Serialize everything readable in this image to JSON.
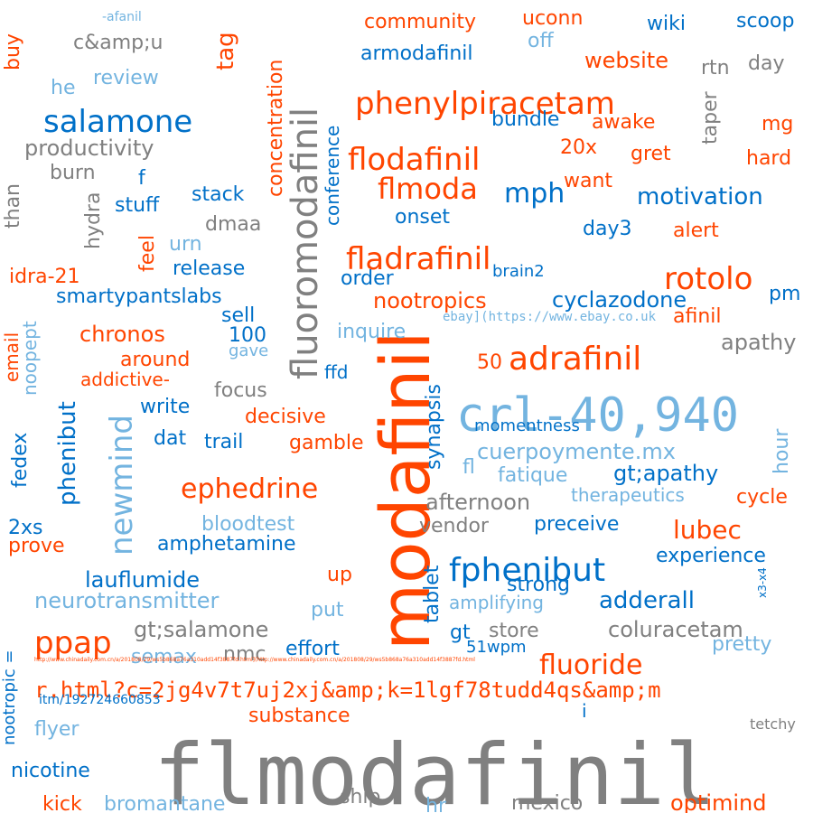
{
  "colors": {
    "gray": "#808080",
    "orange": "#ff4500",
    "blue": "#0070c8",
    "lightblue": "#73b4e0"
  },
  "words": [
    {
      "text": "flmodafinil",
      "color": "gray"
    },
    {
      "text": "modafinil",
      "color": "orange"
    },
    {
      "text": "crl-40,940",
      "color": "lightblue"
    },
    {
      "text": "fluoromodafinil",
      "color": "gray"
    },
    {
      "text": "adrafinil",
      "color": "orange"
    },
    {
      "text": "newmind",
      "color": "lightblue"
    },
    {
      "text": "phenylpiracetam",
      "color": "orange"
    },
    {
      "text": "fphenibut",
      "color": "blue"
    },
    {
      "text": "flodafinil",
      "color": "orange"
    },
    {
      "text": "fladrafinil",
      "color": "orange"
    },
    {
      "text": "salamone",
      "color": "blue"
    },
    {
      "text": "flmoda",
      "color": "orange"
    },
    {
      "text": "rotolo",
      "color": "orange"
    },
    {
      "text": "ppap",
      "color": "orange"
    },
    {
      "text": "ephedrine",
      "color": "orange"
    },
    {
      "text": "fluoride",
      "color": "orange"
    },
    {
      "text": "r.html?c=2jg4v7t7uj2xj&amp;k=1lgf78tudd4qs&amp;m",
      "color": "orange"
    },
    {
      "text": "cuerpoymente.mx",
      "color": "lightblue"
    },
    {
      "text": "phenibut",
      "color": "blue"
    },
    {
      "text": "mph",
      "color": "blue"
    },
    {
      "text": "lubec",
      "color": "orange"
    },
    {
      "text": "adderall",
      "color": "blue"
    },
    {
      "text": "lauflumide",
      "color": "blue"
    },
    {
      "text": "concentration",
      "color": "orange"
    },
    {
      "text": "coluracetam",
      "color": "gray"
    },
    {
      "text": "afternoon",
      "color": "gray"
    },
    {
      "text": "motivation",
      "color": "blue"
    },
    {
      "text": "cyclazodone",
      "color": "blue"
    },
    {
      "text": "tag",
      "color": "orange"
    },
    {
      "text": "productivity",
      "color": "gray"
    },
    {
      "text": "gt;apathy",
      "color": "blue"
    },
    {
      "text": "gt;salamone",
      "color": "gray"
    },
    {
      "text": "neurotransmitter",
      "color": "lightblue"
    },
    {
      "text": "optimind",
      "color": "orange"
    },
    {
      "text": "synapsis",
      "color": "blue"
    },
    {
      "text": "conference",
      "color": "blue"
    },
    {
      "text": "chronos",
      "color": "orange"
    },
    {
      "text": "nootropics",
      "color": "orange"
    },
    {
      "text": "amphetamine",
      "color": "blue"
    },
    {
      "text": "bloodtest",
      "color": "lightblue"
    },
    {
      "text": "decisive",
      "color": "orange"
    },
    {
      "text": "experience",
      "color": "blue"
    },
    {
      "text": "apathy",
      "color": "gray"
    },
    {
      "text": "afinil",
      "color": "orange"
    },
    {
      "text": "website",
      "color": "orange"
    },
    {
      "text": "community",
      "color": "orange"
    },
    {
      "text": "armodafinil",
      "color": "blue"
    },
    {
      "text": "smartypantslabs",
      "color": "blue"
    },
    {
      "text": "release",
      "color": "blue"
    },
    {
      "text": "idra-21",
      "color": "orange"
    },
    {
      "text": "bromantane",
      "color": "lightblue"
    },
    {
      "text": "nicotine",
      "color": "blue"
    },
    {
      "text": "substance",
      "color": "orange"
    },
    {
      "text": "mexico",
      "color": "gray"
    },
    {
      "text": "vendor",
      "color": "gray"
    },
    {
      "text": "preceive",
      "color": "blue"
    },
    {
      "text": "fatique",
      "color": "lightblue"
    },
    {
      "text": "effort",
      "color": "blue"
    },
    {
      "text": "store",
      "color": "gray"
    },
    {
      "text": "amplifying",
      "color": "lightblue"
    },
    {
      "text": "pretty",
      "color": "lightblue"
    },
    {
      "text": "strong",
      "color": "blue"
    },
    {
      "text": "cycle",
      "color": "orange"
    },
    {
      "text": "therapeutics",
      "color": "lightblue"
    },
    {
      "text": "momentness",
      "color": "blue"
    },
    {
      "text": "nootropic =",
      "color": "blue"
    },
    {
      "text": "write",
      "color": "blue"
    },
    {
      "text": "focus",
      "color": "gray"
    },
    {
      "text": "trail",
      "color": "blue"
    },
    {
      "text": "gamble",
      "color": "orange"
    },
    {
      "text": "around",
      "color": "orange"
    },
    {
      "text": "addictive-",
      "color": "orange"
    },
    {
      "text": "inquire",
      "color": "lightblue"
    },
    {
      "text": "ebay](https://www.ebay.co.uk",
      "color": "lightblue"
    },
    {
      "text": "order",
      "color": "blue"
    },
    {
      "text": "onset",
      "color": "blue"
    },
    {
      "text": "dmaa",
      "color": "gray"
    },
    {
      "text": "stack",
      "color": "blue"
    },
    {
      "text": "stuff",
      "color": "blue"
    },
    {
      "text": "burn",
      "color": "gray"
    },
    {
      "text": "review",
      "color": "lightblue"
    },
    {
      "text": "c&amp;u",
      "color": "gray"
    },
    {
      "text": "bundle",
      "color": "blue"
    },
    {
      "text": "awake",
      "color": "orange"
    },
    {
      "text": "gret",
      "color": "orange"
    },
    {
      "text": "want",
      "color": "orange"
    },
    {
      "text": "alert",
      "color": "orange"
    },
    {
      "text": "day3",
      "color": "blue"
    },
    {
      "text": "brain2",
      "color": "blue"
    },
    {
      "text": "hard",
      "color": "orange"
    },
    {
      "text": "mg",
      "color": "orange"
    },
    {
      "text": "day",
      "color": "gray"
    },
    {
      "text": "rtn",
      "color": "gray"
    },
    {
      "text": "taper",
      "color": "gray"
    },
    {
      "text": "wiki",
      "color": "blue"
    },
    {
      "text": "scoop",
      "color": "blue"
    },
    {
      "text": "uconn",
      "color": "orange"
    },
    {
      "text": "off",
      "color": "lightblue"
    },
    {
      "text": "20x",
      "color": "orange"
    },
    {
      "text": "pm",
      "color": "blue"
    },
    {
      "text": "50",
      "color": "orange"
    },
    {
      "text": "ffd",
      "color": "blue"
    },
    {
      "text": "gave",
      "color": "lightblue"
    },
    {
      "text": "100",
      "color": "blue"
    },
    {
      "text": "sell",
      "color": "blue"
    },
    {
      "text": "urn",
      "color": "lightblue"
    },
    {
      "text": "feel",
      "color": "orange"
    },
    {
      "text": "hydra",
      "color": "gray"
    },
    {
      "text": "than",
      "color": "gray"
    },
    {
      "text": "f",
      "color": "blue"
    },
    {
      "text": "he",
      "color": "lightblue"
    },
    {
      "text": "buy",
      "color": "orange"
    },
    {
      "text": "-afanil",
      "color": "lightblue"
    },
    {
      "text": "email",
      "color": "orange"
    },
    {
      "text": "noopept",
      "color": "lightblue"
    },
    {
      "text": "fedex",
      "color": "blue"
    },
    {
      "text": "dat",
      "color": "blue"
    },
    {
      "text": "2xs",
      "color": "blue"
    },
    {
      "text": "prove",
      "color": "orange"
    },
    {
      "text": "semax",
      "color": "lightblue"
    },
    {
      "text": "nmc",
      "color": "gray"
    },
    {
      "text": "put",
      "color": "lightblue"
    },
    {
      "text": "up",
      "color": "orange"
    },
    {
      "text": "tablet",
      "color": "blue"
    },
    {
      "text": "gt",
      "color": "blue"
    },
    {
      "text": "51wpm",
      "color": "blue"
    },
    {
      "text": "fl",
      "color": "lightblue"
    },
    {
      "text": "hour",
      "color": "lightblue"
    },
    {
      "text": "x3-x4",
      "color": "blue"
    },
    {
      "text": "http://www.chinadaily.com.cn/a/201808/29/ws5b868a76a310add14f3887fd.html](http://www.chinadaily.com.cn/a/201808/29/ws5b868a76a310add14f3887fd.html",
      "color": "orange"
    },
    {
      "text": "itm/192724660853",
      "color": "blue"
    },
    {
      "text": "i",
      "color": "blue"
    },
    {
      "text": "flyer",
      "color": "lightblue"
    },
    {
      "text": "tetchy",
      "color": "gray"
    },
    {
      "text": "ship",
      "color": "gray"
    },
    {
      "text": "hr",
      "color": "lightblue"
    },
    {
      "text": "kick",
      "color": "orange"
    }
  ]
}
